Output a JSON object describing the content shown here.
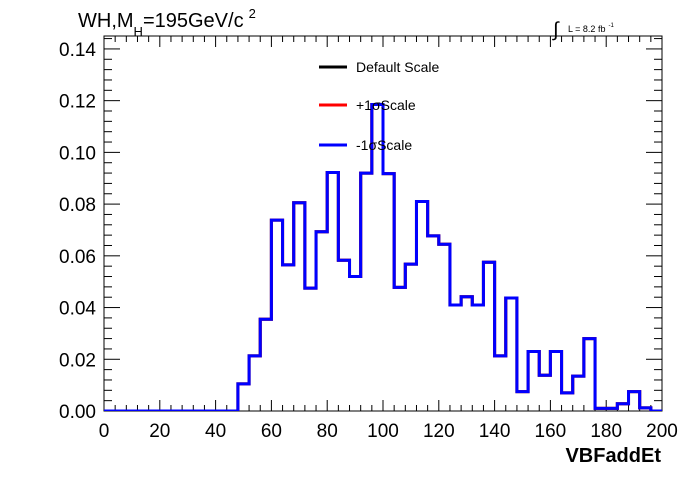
{
  "title": {
    "prefix": "WH,M",
    "sub": "H",
    "rest": "=195GeV/c",
    "sup": "2"
  },
  "lumi": {
    "integral": "∫",
    "text": "L = 8.2 fb",
    "sup": "-1"
  },
  "chart_data": {
    "type": "line",
    "xlabel": "VBFaddEt",
    "ylabel": "",
    "xlim": [
      0,
      200
    ],
    "ylim": [
      0,
      0.145
    ],
    "xticks": [
      0,
      20,
      40,
      60,
      80,
      100,
      120,
      140,
      160,
      180,
      200
    ],
    "yticks": [
      0.0,
      0.02,
      0.04,
      0.06,
      0.08,
      0.1,
      0.12,
      0.14
    ],
    "xtick_labels": [
      "0",
      "20",
      "40",
      "60",
      "80",
      "100",
      "120",
      "140",
      "160",
      "180",
      "200"
    ],
    "ytick_labels": [
      "0.00",
      "0.02",
      "0.04",
      "0.06",
      "0.08",
      "0.10",
      "0.12",
      "0.14"
    ],
    "grid": false,
    "legend_position": "top-center",
    "bin_edges": [
      0,
      4,
      8,
      12,
      16,
      20,
      24,
      28,
      32,
      36,
      40,
      44,
      48,
      52,
      56,
      60,
      64,
      68,
      72,
      76,
      80,
      84,
      88,
      92,
      96,
      100,
      104,
      108,
      112,
      116,
      120,
      124,
      128,
      132,
      136,
      140,
      144,
      148,
      152,
      156,
      160,
      164,
      168,
      172,
      176,
      180,
      184,
      188,
      192,
      196,
      200
    ],
    "series": [
      {
        "name": "Default Scale",
        "color": "#000000",
        "values": [
          0,
          0,
          0,
          0,
          0,
          0,
          0,
          0,
          0,
          0,
          0,
          0,
          0.0105,
          0.0213,
          0.0355,
          0.0738,
          0.0565,
          0.0805,
          0.0475,
          0.0693,
          0.0922,
          0.0583,
          0.052,
          0.092,
          0.1185,
          0.0918,
          0.0478,
          0.0568,
          0.081,
          0.0677,
          0.0645,
          0.041,
          0.0442,
          0.041,
          0.0575,
          0.0213,
          0.0437,
          0.0075,
          0.023,
          0.0138,
          0.023,
          0.007,
          0.0135,
          0.028,
          0.001,
          0.001,
          0.0028,
          0.0075,
          0.0012,
          0
        ]
      },
      {
        "name": "+1σScale",
        "color": "#ff0000",
        "values": [
          0,
          0,
          0,
          0,
          0,
          0,
          0,
          0,
          0,
          0,
          0,
          0,
          0.0105,
          0.0213,
          0.0355,
          0.0738,
          0.0565,
          0.0805,
          0.0475,
          0.0693,
          0.0922,
          0.0583,
          0.052,
          0.092,
          0.1185,
          0.0918,
          0.0478,
          0.0568,
          0.081,
          0.0677,
          0.0645,
          0.041,
          0.0442,
          0.041,
          0.0575,
          0.0213,
          0.0437,
          0.0075,
          0.023,
          0.0138,
          0.023,
          0.007,
          0.0135,
          0.028,
          0.001,
          0.001,
          0.0028,
          0.0075,
          0.0012,
          0
        ]
      },
      {
        "name": "-1σScale",
        "color": "#0000ff",
        "values": [
          0,
          0,
          0,
          0,
          0,
          0,
          0,
          0,
          0,
          0,
          0,
          0,
          0.0105,
          0.0213,
          0.0355,
          0.0738,
          0.0565,
          0.0805,
          0.0475,
          0.0693,
          0.0922,
          0.0583,
          0.052,
          0.092,
          0.1185,
          0.0918,
          0.0478,
          0.0568,
          0.081,
          0.0677,
          0.0645,
          0.041,
          0.0442,
          0.041,
          0.0575,
          0.0213,
          0.0437,
          0.0075,
          0.023,
          0.0138,
          0.023,
          0.007,
          0.0135,
          0.028,
          0.001,
          0.001,
          0.0028,
          0.0075,
          0.0012,
          0
        ]
      }
    ]
  }
}
